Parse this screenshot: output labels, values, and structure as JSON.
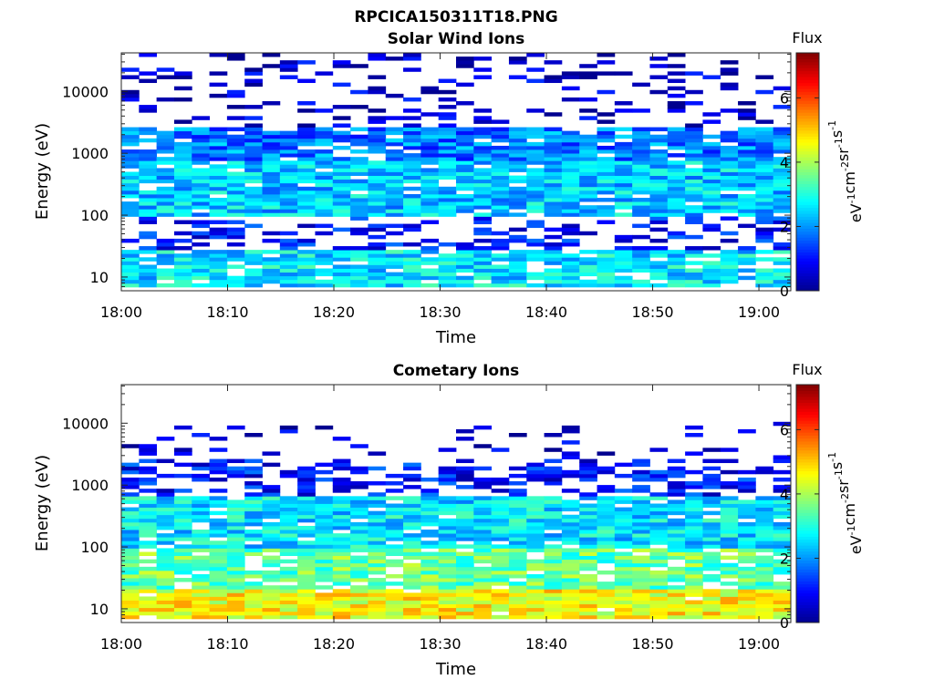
{
  "figure": {
    "title": "RPCICA150311T18.PNG"
  },
  "colormap": [
    "#00008f",
    "#0000ff",
    "#0080ff",
    "#00ffff",
    "#80ff80",
    "#ffff00",
    "#ff8000",
    "#ff0000",
    "#800000"
  ],
  "chart_data": [
    {
      "type": "heatmap",
      "title": "Solar Wind Ions",
      "xlabel": "Time",
      "ylabel": "Energy (eV)",
      "xlim": [
        "18:00",
        "19:03"
      ],
      "ylim": [
        6,
        42000
      ],
      "yscale": "log",
      "xticks": [
        "18:00",
        "18:10",
        "18:20",
        "18:30",
        "18:40",
        "18:50",
        "19:00"
      ],
      "yticks": [
        10,
        100,
        1000,
        10000
      ],
      "ytick_labels": [
        "10",
        "100",
        "1000",
        "10000"
      ],
      "colorbar": {
        "label": "eV⁻¹cm⁻²sr⁻¹s⁻¹",
        "title": "Flux",
        "range": [
          0,
          7.4
        ],
        "ticks": [
          0,
          2,
          4,
          6
        ],
        "tick_labels": [
          "0",
          "2",
          "4",
          "6"
        ]
      },
      "grid": false,
      "columns": 38,
      "energy_levels": [
        {
          "range": [
            7,
            28
          ],
          "level": 2.6,
          "prob": 0.85
        },
        {
          "range": [
            28,
            90
          ],
          "level": 1.0,
          "prob": 0.35
        },
        {
          "range": [
            90,
            800
          ],
          "level": 2.4,
          "prob": 0.92
        },
        {
          "range": [
            800,
            2500
          ],
          "level": 1.8,
          "prob": 0.88
        },
        {
          "range": [
            2500,
            42000
          ],
          "level": 0.5,
          "prob": 0.22
        }
      ]
    },
    {
      "type": "heatmap",
      "title": "Cometary Ions",
      "xlabel": "Time",
      "ylabel": "Energy (eV)",
      "xlim": [
        "18:00",
        "19:03"
      ],
      "ylim": [
        6,
        42000
      ],
      "yscale": "log",
      "xticks": [
        "18:00",
        "18:10",
        "18:20",
        "18:30",
        "18:40",
        "18:50",
        "19:00"
      ],
      "yticks": [
        10,
        100,
        1000,
        10000
      ],
      "ytick_labels": [
        "10",
        "100",
        "1000",
        "10000"
      ],
      "colorbar": {
        "label": "eV⁻¹cm⁻²sr⁻¹s⁻¹",
        "title": "Flux",
        "range": [
          0,
          7.4
        ],
        "ticks": [
          0,
          2,
          4,
          6
        ],
        "tick_labels": [
          "0",
          "2",
          "4",
          "6"
        ]
      },
      "grid": false,
      "columns": 38,
      "energy_levels": [
        {
          "range": [
            7,
            20
          ],
          "level": 4.6,
          "prob": 0.97
        },
        {
          "range": [
            20,
            90
          ],
          "level": 3.5,
          "prob": 0.85
        },
        {
          "range": [
            90,
            700
          ],
          "level": 2.6,
          "prob": 0.92
        },
        {
          "range": [
            700,
            2800
          ],
          "level": 1.0,
          "prob": 0.45
        },
        {
          "range": [
            2800,
            10000
          ],
          "level": 0.4,
          "prob": 0.08
        }
      ]
    }
  ]
}
